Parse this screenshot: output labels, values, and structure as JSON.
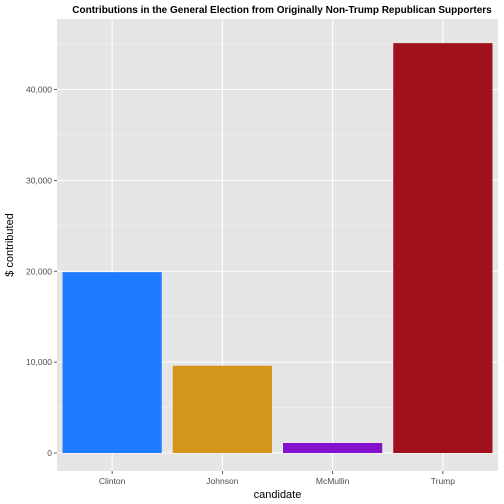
{
  "chart_data": {
    "type": "bar",
    "title": "Contributions in the General Election from Originally Non-Trump Republican Supporters",
    "xlabel": "candidate",
    "ylabel": "$ contributed",
    "categories": [
      "Clinton",
      "Johnson",
      "McMullin",
      "Trump"
    ],
    "values": [
      19900,
      9600,
      1100,
      45100
    ],
    "colors": [
      "#1f7bff",
      "#d4951b",
      "#8411cc",
      "#a0111d"
    ],
    "ylim": [
      0,
      47600
    ],
    "yticks": [
      0,
      10000,
      20000,
      30000,
      40000
    ],
    "ytick_labels": [
      "0",
      "10,000",
      "20,000",
      "30,000",
      "40,000"
    ],
    "grid": true,
    "panel_background": "#e5e5e5",
    "legend": "none"
  }
}
